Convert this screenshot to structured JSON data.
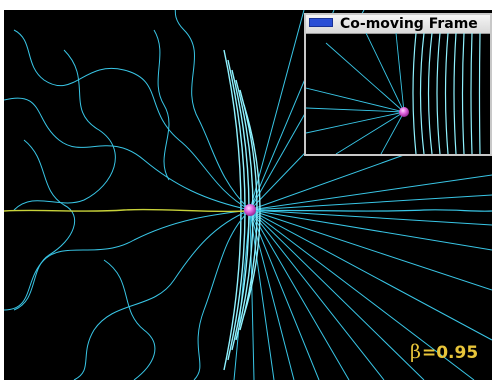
{
  "inset": {
    "title": "Co-moving Frame"
  },
  "readout": {
    "symbol": "β",
    "equals_value": "=0.95",
    "beta": 0.95
  },
  "colors": {
    "background": "#000000",
    "field_line": "#39c6e6",
    "field_line_bright": "#8ff2ff",
    "axis_line": "#c8d23a",
    "charge": "#d64bd6",
    "charge_highlight": "#ffc0ff",
    "readout_text": "#e8c53a",
    "window_border": "#c8c8c8"
  },
  "icons": {
    "inset_window": "window-system-icon",
    "charge": "point-charge-icon"
  }
}
